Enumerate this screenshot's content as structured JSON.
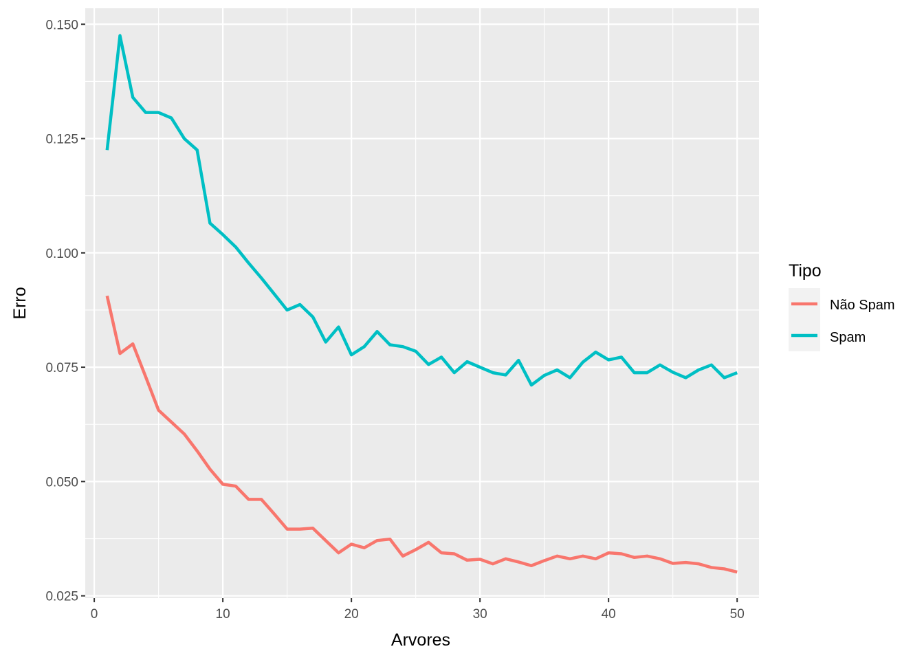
{
  "chart_data": {
    "type": "line",
    "xlabel": "Arvores",
    "ylabel": "Erro",
    "xlim": [
      -0.7,
      51.7
    ],
    "ylim": [
      0.0245,
      0.1535
    ],
    "xticks": [
      0,
      10,
      20,
      30,
      40,
      50
    ],
    "xtick_labels": [
      "0",
      "10",
      "20",
      "30",
      "40",
      "50"
    ],
    "yticks": [
      0.025,
      0.05,
      0.075,
      0.1,
      0.125,
      0.15
    ],
    "ytick_labels": [
      "0.025",
      "0.050",
      "0.075",
      "0.100",
      "0.125",
      "0.150"
    ],
    "grid": true,
    "legend": {
      "title": "Tipo",
      "position": "right"
    },
    "x": [
      1,
      2,
      3,
      4,
      5,
      6,
      7,
      8,
      9,
      10,
      11,
      12,
      13,
      14,
      15,
      16,
      17,
      18,
      19,
      20,
      21,
      22,
      23,
      24,
      25,
      26,
      27,
      28,
      29,
      30,
      31,
      32,
      33,
      34,
      35,
      36,
      37,
      38,
      39,
      40,
      41,
      42,
      43,
      44,
      45,
      46,
      47,
      48,
      49,
      50
    ],
    "series": [
      {
        "name": "Não Spam",
        "color": "#F8766D",
        "values": [
          0.0906,
          0.078,
          0.0801,
          0.0729,
          0.0656,
          0.063,
          0.0604,
          0.0567,
          0.0527,
          0.0494,
          0.049,
          0.0461,
          0.0461,
          0.0429,
          0.0396,
          0.0396,
          0.0398,
          0.0371,
          0.0344,
          0.0363,
          0.0355,
          0.0371,
          0.0374,
          0.0337,
          0.0351,
          0.0367,
          0.0344,
          0.0342,
          0.0328,
          0.033,
          0.032,
          0.0331,
          0.0324,
          0.0316,
          0.0327,
          0.0337,
          0.0331,
          0.0337,
          0.0331,
          0.0344,
          0.0342,
          0.0334,
          0.0337,
          0.0331,
          0.0321,
          0.0323,
          0.032,
          0.0312,
          0.0309,
          0.0302
        ]
      },
      {
        "name": "Spam",
        "color": "#00BFC4",
        "values": [
          0.1225,
          0.1475,
          0.134,
          0.1307,
          0.1307,
          0.1295,
          0.125,
          0.1225,
          0.1065,
          0.104,
          0.1013,
          0.0978,
          0.0945,
          0.091,
          0.0875,
          0.0887,
          0.086,
          0.0805,
          0.0838,
          0.0777,
          0.0795,
          0.0828,
          0.0799,
          0.0795,
          0.0785,
          0.0756,
          0.0772,
          0.0738,
          0.0762,
          0.075,
          0.0738,
          0.0733,
          0.0765,
          0.0711,
          0.0732,
          0.0744,
          0.0727,
          0.0761,
          0.0783,
          0.0766,
          0.0772,
          0.0738,
          0.0738,
          0.0755,
          0.0739,
          0.0727,
          0.0744,
          0.0755,
          0.0727,
          0.0738
        ]
      }
    ]
  }
}
